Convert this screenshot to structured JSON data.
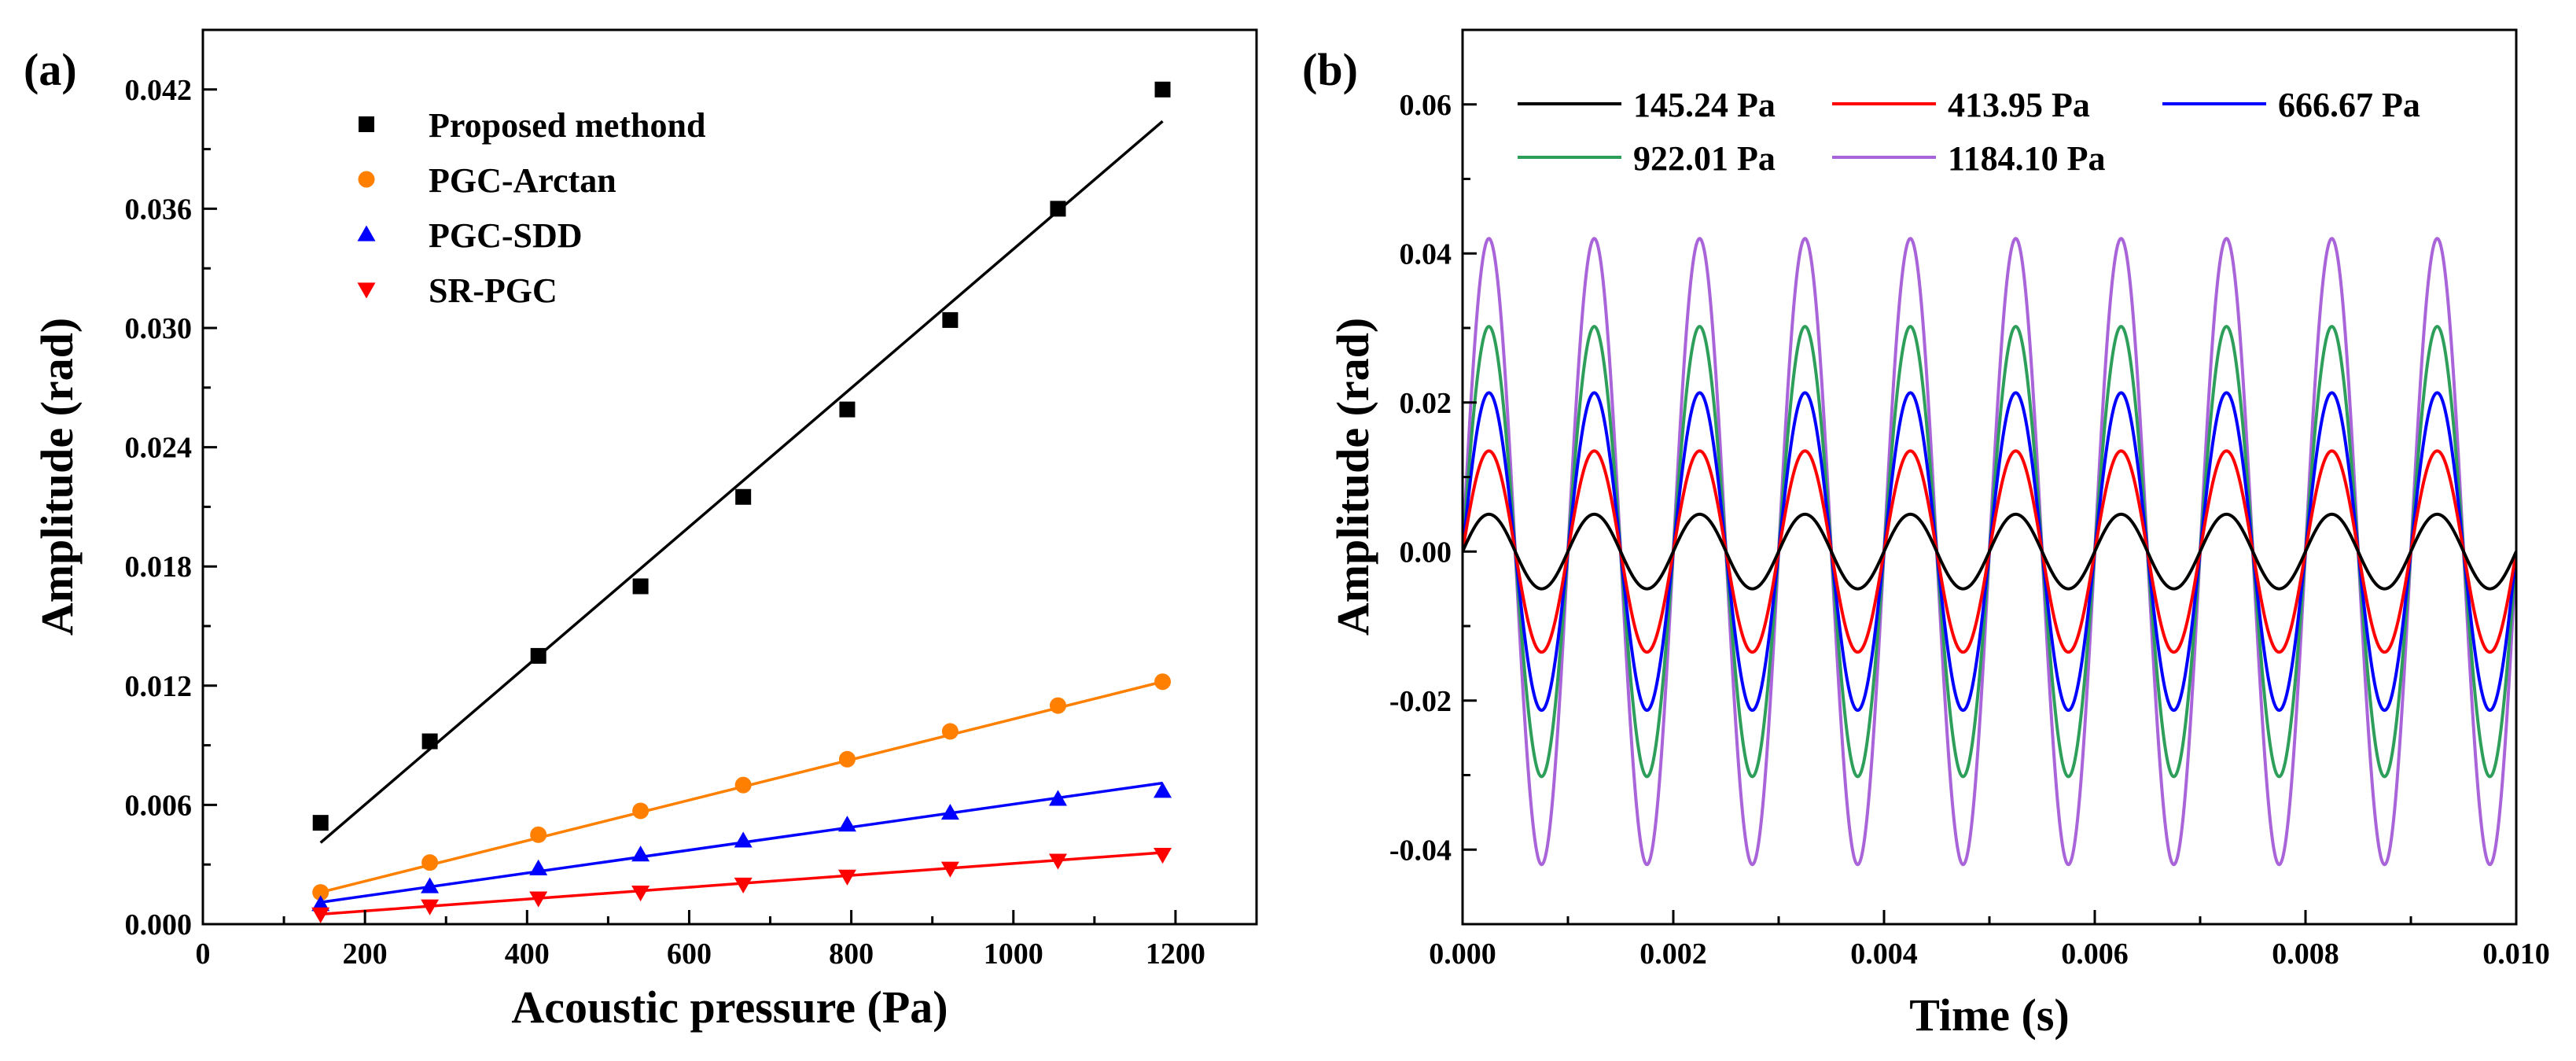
{
  "panels": {
    "a": {
      "label": "(a)"
    },
    "b": {
      "label": "(b)"
    }
  },
  "chart_data": [
    {
      "type": "scatter",
      "panel": "a",
      "xlabel": "Acoustic pressure (Pa)",
      "ylabel": "Amplitude (rad)",
      "xlim": [
        0,
        1300
      ],
      "ylim": [
        0,
        0.045
      ],
      "xticks": [
        0,
        200,
        400,
        600,
        800,
        1000,
        1200
      ],
      "xtick_labels": [
        "0",
        "200",
        "400",
        "600",
        "800",
        "1000",
        "1200"
      ],
      "yticks": [
        0,
        0.006,
        0.012,
        0.018,
        0.024,
        0.03,
        0.036,
        0.042
      ],
      "ytick_labels": [
        "0.000",
        "0.006",
        "0.012",
        "0.018",
        "0.024",
        "0.030",
        "0.036",
        "0.042"
      ],
      "legend_position": "top-left",
      "series": [
        {
          "name": "Proposed methond",
          "marker": "square",
          "color": "#000000",
          "x": [
            145.24,
            280,
            413.95,
            540,
            666.67,
            795,
            922.01,
            1055,
            1184.1
          ],
          "y": [
            0.0051,
            0.0092,
            0.0135,
            0.017,
            0.0215,
            0.0259,
            0.0304,
            0.036,
            0.042
          ],
          "fit": [
            [
              145.24,
              0.0041
            ],
            [
              1184.1,
              0.0404
            ]
          ]
        },
        {
          "name": "PGC-Arctan",
          "marker": "circle",
          "color": "#ff8000",
          "x": [
            145.24,
            280,
            413.95,
            540,
            666.67,
            795,
            922.01,
            1055,
            1184.1
          ],
          "y": [
            0.0016,
            0.0031,
            0.0045,
            0.0057,
            0.007,
            0.0083,
            0.0097,
            0.011,
            0.0122
          ],
          "fit": [
            [
              145.24,
              0.0016
            ],
            [
              1184.1,
              0.0122
            ]
          ]
        },
        {
          "name": "PGC-SDD",
          "marker": "triangle-up",
          "color": "#0000ff",
          "x": [
            145.24,
            280,
            413.95,
            540,
            666.67,
            795,
            922.01,
            1055,
            1184.1
          ],
          "y": [
            0.001,
            0.0019,
            0.0028,
            0.0035,
            0.0042,
            0.005,
            0.0056,
            0.0063,
            0.0067
          ],
          "fit": [
            [
              145.24,
              0.0011
            ],
            [
              1184.1,
              0.0071
            ]
          ]
        },
        {
          "name": "SR-PGC",
          "marker": "triangle-down",
          "color": "#ff0000",
          "x": [
            145.24,
            280,
            413.95,
            540,
            666.67,
            795,
            922.01,
            1055,
            1184.1
          ],
          "y": [
            0.0005,
            0.0009,
            0.0013,
            0.0016,
            0.002,
            0.0024,
            0.0028,
            0.0032,
            0.0035
          ],
          "fit": [
            [
              145.24,
              0.0005
            ],
            [
              1184.1,
              0.0036
            ]
          ]
        }
      ]
    },
    {
      "type": "line",
      "panel": "b",
      "xlabel": "Time (s)",
      "ylabel": "Amplitude (rad)",
      "xlim": [
        0,
        0.01
      ],
      "ylim": [
        -0.05,
        0.07
      ],
      "xticks": [
        0,
        0.002,
        0.004,
        0.006,
        0.008,
        0.01
      ],
      "xtick_labels": [
        "0.000",
        "0.002",
        "0.004",
        "0.006",
        "0.008",
        "0.010"
      ],
      "yticks": [
        -0.04,
        -0.02,
        0.0,
        0.02,
        0.04,
        0.06
      ],
      "ytick_labels": [
        "-0.04",
        "-0.02",
        "0.00",
        "0.02",
        "0.04",
        "0.06"
      ],
      "frequency_hz": 1000,
      "legend_position": "top",
      "series": [
        {
          "name": "1184.10 Pa",
          "color": "#a864d8",
          "amplitude": 0.042
        },
        {
          "name": "922.01 Pa",
          "color": "#2e9e5b",
          "amplitude": 0.0302
        },
        {
          "name": "666.67 Pa",
          "color": "#0000ff",
          "amplitude": 0.0213
        },
        {
          "name": "413.95 Pa",
          "color": "#ff0000",
          "amplitude": 0.0135
        },
        {
          "name": "145.24 Pa",
          "color": "#000000",
          "amplitude": 0.005
        }
      ]
    }
  ]
}
